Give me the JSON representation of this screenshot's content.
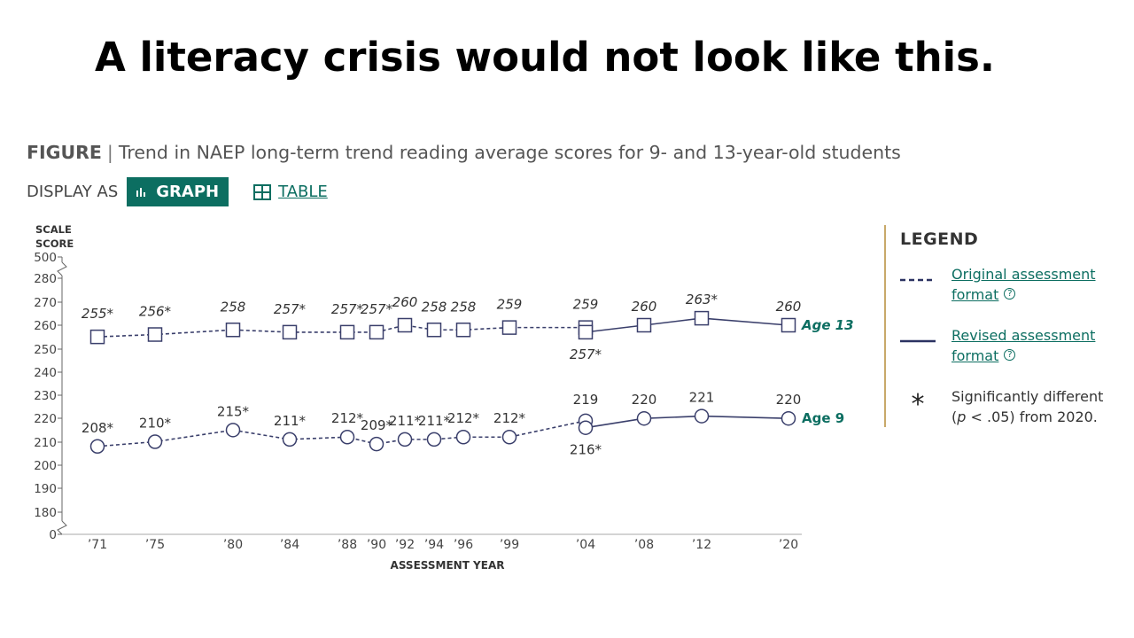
{
  "slide": {
    "title": "A literacy crisis would not look like this."
  },
  "figure": {
    "label": "FIGURE",
    "separator": "|",
    "caption": "Trend in NAEP long-term trend reading average scores for 9- and 13-year-old students"
  },
  "display": {
    "label": "DISPLAY AS",
    "graph_label": "GRAPH",
    "table_label": "TABLE"
  },
  "legend": {
    "title": "LEGEND",
    "original": "Original assessment format",
    "revised": "Revised assessment format",
    "star_symbol": "*",
    "significant": "Significantly different",
    "significant_p": "p",
    "significant_rest": " < .05) from 2020.",
    "info_glyph": "?"
  },
  "colors": {
    "line": "#3a3f6b",
    "accent": "#0c6e61",
    "axis": "#666666",
    "label": "#333333"
  },
  "chart_data": {
    "type": "line",
    "title": "Trend in NAEP long-term trend reading average scores for 9- and 13-year-old students",
    "xlabel": "ASSESSMENT YEAR",
    "ylabel": "SCALE SCORE",
    "y_axis_break": true,
    "y_ticks": [
      "500",
      "280",
      "270",
      "260",
      "250",
      "240",
      "230",
      "220",
      "210",
      "200",
      "190",
      "180",
      "0"
    ],
    "ylim": [
      170,
      285
    ],
    "x_categories": [
      {
        "label": "’71",
        "year": 1971
      },
      {
        "label": "’75",
        "year": 1975
      },
      {
        "label": "’80",
        "year": 1980
      },
      {
        "label": "’84",
        "year": 1984
      },
      {
        "label": "’88",
        "year": 1988
      },
      {
        "label": "’90",
        "year": 1990
      },
      {
        "label": "’92",
        "year": 1992
      },
      {
        "label": "’94",
        "year": 1994
      },
      {
        "label": "’96",
        "year": 1996
      },
      {
        "label": "’99",
        "year": 1999
      },
      {
        "label": "’04",
        "year": 2004
      },
      {
        "label": "’08",
        "year": 2008
      },
      {
        "label": "’12",
        "year": 2012
      },
      {
        "label": "’20",
        "year": 2020
      }
    ],
    "series": [
      {
        "name": "Age 13",
        "marker": "square",
        "original": [
          {
            "year": 1971,
            "value": 255,
            "label": "255*"
          },
          {
            "year": 1975,
            "value": 256,
            "label": "256*"
          },
          {
            "year": 1980,
            "value": 258,
            "label": "258"
          },
          {
            "year": 1984,
            "value": 257,
            "label": "257*"
          },
          {
            "year": 1988,
            "value": 257,
            "label": "257*"
          },
          {
            "year": 1990,
            "value": 257,
            "label": "257*"
          },
          {
            "year": 1992,
            "value": 260,
            "label": "260"
          },
          {
            "year": 1994,
            "value": 258,
            "label": "258"
          },
          {
            "year": 1996,
            "value": 258,
            "label": "258"
          },
          {
            "year": 1999,
            "value": 259,
            "label": "259"
          },
          {
            "year": 2004,
            "value": 259,
            "label": "259"
          }
        ],
        "revised": [
          {
            "year": 2004,
            "value": 257,
            "label": "257*"
          },
          {
            "year": 2008,
            "value": 260,
            "label": "260"
          },
          {
            "year": 2012,
            "value": 263,
            "label": "263*"
          },
          {
            "year": 2020,
            "value": 260,
            "label": "260"
          }
        ]
      },
      {
        "name": "Age 9",
        "marker": "circle",
        "original": [
          {
            "year": 1971,
            "value": 208,
            "label": "208*"
          },
          {
            "year": 1975,
            "value": 210,
            "label": "210*"
          },
          {
            "year": 1980,
            "value": 215,
            "label": "215*"
          },
          {
            "year": 1984,
            "value": 211,
            "label": "211*"
          },
          {
            "year": 1988,
            "value": 212,
            "label": "212*"
          },
          {
            "year": 1990,
            "value": 209,
            "label": "209*"
          },
          {
            "year": 1992,
            "value": 211,
            "label": "211*"
          },
          {
            "year": 1994,
            "value": 211,
            "label": "211*"
          },
          {
            "year": 1996,
            "value": 212,
            "label": "212*"
          },
          {
            "year": 1999,
            "value": 212,
            "label": "212*"
          },
          {
            "year": 2004,
            "value": 219,
            "label": "219"
          }
        ],
        "revised": [
          {
            "year": 2004,
            "value": 216,
            "label": "216*"
          },
          {
            "year": 2008,
            "value": 220,
            "label": "220"
          },
          {
            "year": 2012,
            "value": 221,
            "label": "221"
          },
          {
            "year": 2020,
            "value": 220,
            "label": "220"
          }
        ]
      }
    ]
  }
}
